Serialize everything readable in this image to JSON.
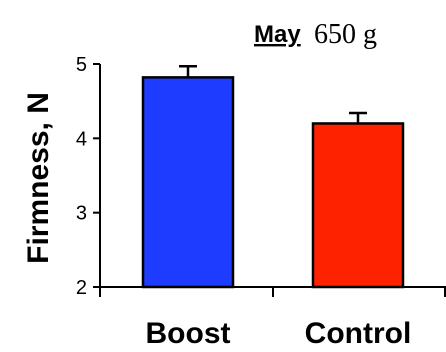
{
  "chart_data": {
    "type": "bar",
    "title_main": "May",
    "title_sub": "650 g",
    "ylabel": "Firmness, N",
    "xlabel": "",
    "categories": [
      "Boost",
      "Control"
    ],
    "values": [
      4.82,
      4.2
    ],
    "errors": [
      0.15,
      0.14
    ],
    "colors": [
      "#1e3cff",
      "#ff2200"
    ],
    "ylim": [
      2,
      5
    ],
    "yticks": [
      "2",
      "3",
      "4",
      "5"
    ],
    "grid": false,
    "legend": "none"
  }
}
